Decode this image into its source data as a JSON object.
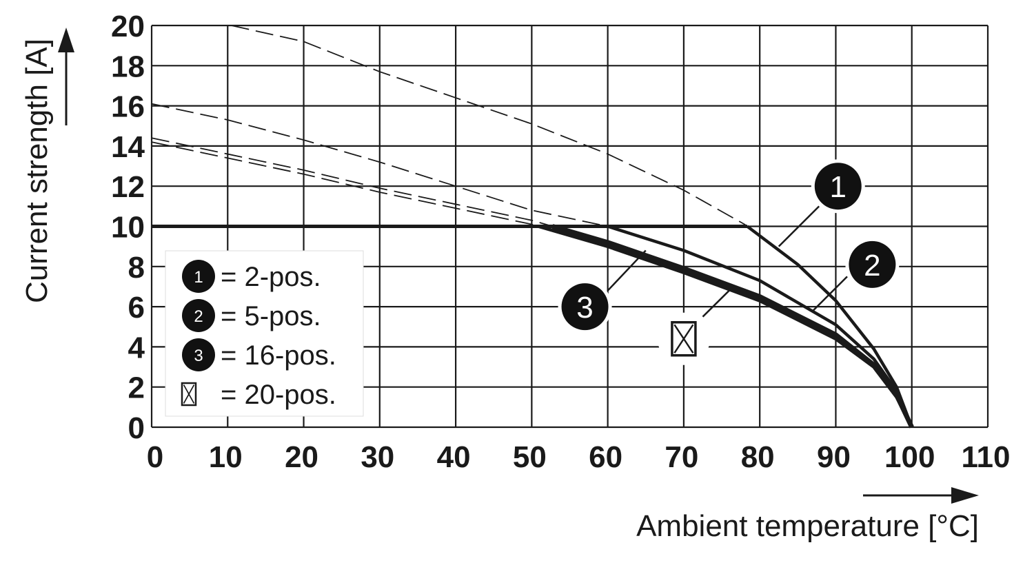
{
  "chart_data": {
    "type": "line",
    "xlabel": "Ambient temperature [°C]",
    "ylabel": "Current strength [A]",
    "xlim": [
      0,
      110
    ],
    "ylim": [
      0,
      20
    ],
    "x_ticks": [
      0,
      10,
      20,
      30,
      40,
      50,
      60,
      70,
      80,
      90,
      100,
      110
    ],
    "y_ticks": [
      0,
      2,
      4,
      6,
      8,
      10,
      12,
      14,
      16,
      18,
      20
    ],
    "grid": true,
    "current_limit": 10,
    "series": [
      {
        "marker": "1",
        "x": [
          10.5,
          20,
          30,
          40,
          50,
          60,
          70,
          78,
          85,
          90,
          95,
          98,
          100
        ],
        "y": [
          20,
          19.2,
          17.7,
          16.4,
          15.1,
          13.6,
          11.8,
          10.1,
          8.1,
          6.3,
          3.9,
          2.0,
          0
        ]
      },
      {
        "marker": "2",
        "x": [
          0,
          10,
          20,
          30,
          40,
          50,
          60,
          70,
          80,
          90,
          95,
          98,
          100
        ],
        "y": [
          16.1,
          15.3,
          14.3,
          13.2,
          12.0,
          10.8,
          10.0,
          8.8,
          7.3,
          5.1,
          3.4,
          1.8,
          0
        ]
      },
      {
        "marker": "3",
        "x": [
          0,
          10,
          20,
          30,
          40,
          50,
          60,
          70,
          80,
          90,
          95,
          98,
          100
        ],
        "y": [
          14.4,
          13.6,
          12.8,
          11.9,
          11.1,
          10.3,
          9.2,
          7.9,
          6.5,
          4.6,
          3.1,
          1.6,
          0
        ]
      },
      {
        "marker": "box",
        "x": [
          0,
          10,
          20,
          30,
          40,
          50,
          60,
          70,
          80,
          90,
          95,
          98,
          100
        ],
        "y": [
          14.2,
          13.4,
          12.6,
          11.7,
          10.9,
          10.1,
          9.0,
          7.7,
          6.3,
          4.4,
          3.0,
          1.5,
          0
        ]
      }
    ],
    "legend": [
      {
        "marker": "1",
        "label": "= 2-pos."
      },
      {
        "marker": "2",
        "label": "= 5-pos."
      },
      {
        "marker": "3",
        "label": "= 16-pos."
      },
      {
        "marker": "box",
        "label": "= 20-pos."
      }
    ],
    "legend_placement": "lower-left"
  }
}
